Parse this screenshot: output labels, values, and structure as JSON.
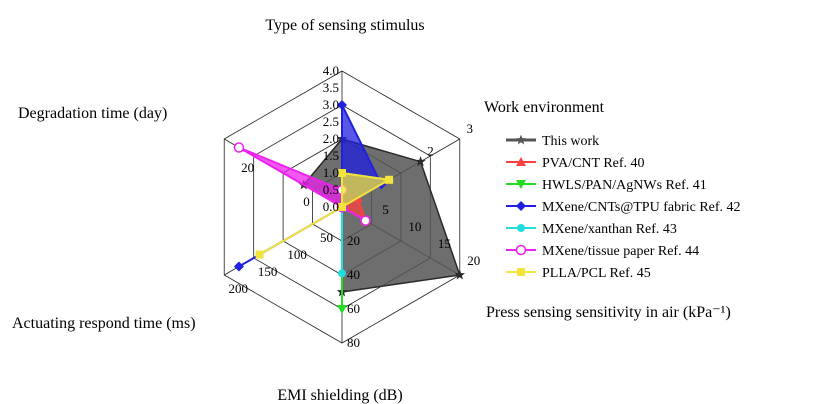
{
  "chart_data": {
    "type": "radar",
    "title": "",
    "axes": [
      {
        "label": "Type of sensing stimulus",
        "min": 0,
        "max": 4,
        "ticks": [
          "0.0",
          "0.5",
          "1.0",
          "1.5",
          "2.0",
          "2.5",
          "3.0",
          "3.5",
          "4.0"
        ]
      },
      {
        "label": "Work environment",
        "min": 0,
        "max": 3,
        "ticks": [
          "2",
          "3"
        ]
      },
      {
        "label": "Press sensing sensitivity in air (kPa⁻¹)",
        "min": 0,
        "max": 20,
        "ticks": [
          "5",
          "10",
          "15",
          "20"
        ]
      },
      {
        "label": "EMI shielding (dB)",
        "min": 0,
        "max": 80,
        "ticks": [
          "20",
          "40",
          "60",
          "80"
        ]
      },
      {
        "label": "Actuating respond time (ms)",
        "min": 0,
        "max": 200,
        "ticks": [
          "50",
          "100",
          "150",
          "200"
        ]
      },
      {
        "label": "Degradation time (day)",
        "min": -10,
        "max": 30,
        "ticks": [
          "0",
          "20"
        ]
      }
    ],
    "series": [
      {
        "name": "This work",
        "color": "#555555",
        "marker": "star",
        "fill": true,
        "values": [
          2,
          2,
          20,
          50,
          0,
          3
        ]
      },
      {
        "name": "PVA/CNT Ref. 40",
        "color": "#ff4040",
        "marker": "triangle-up",
        "fill": true,
        "values": [
          0.5,
          0.4,
          4,
          0,
          0,
          -10
        ]
      },
      {
        "name": "HWLS/PAN/AgNWs Ref. 41",
        "color": "#22dd22",
        "marker": "triangle-down",
        "fill": true,
        "values": [
          0,
          0,
          0,
          60,
          0,
          -10
        ]
      },
      {
        "name": "MXene/CNTs@TPU fabric Ref. 42",
        "color": "#2020e0",
        "marker": "diamond",
        "fill": true,
        "values": [
          3,
          1,
          0,
          0,
          175,
          -10
        ]
      },
      {
        "name": "MXene/xanthan  Ref. 43",
        "color": "#22dddd",
        "marker": "circle",
        "fill": true,
        "values": [
          0,
          0,
          0,
          39,
          0,
          -10
        ]
      },
      {
        "name": "MXene/tissue paper Ref. 44",
        "color": "#ee22ee",
        "marker": "circle-open",
        "fill": true,
        "values": [
          0.5,
          0,
          4,
          0,
          0,
          25
        ]
      },
      {
        "name": "PLLA/PCL Ref. 45",
        "color": "#f2e43a",
        "marker": "square",
        "fill": true,
        "values": [
          1,
          1.2,
          0,
          0,
          140,
          -10
        ]
      }
    ],
    "legend_position": "right"
  }
}
